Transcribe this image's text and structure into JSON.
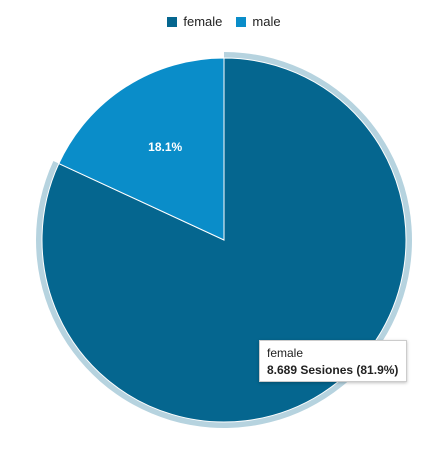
{
  "chart_data": {
    "type": "pie",
    "categories": [
      "female",
      "male"
    ],
    "values": [
      81.9,
      18.1
    ],
    "colors": [
      "#05668f",
      "#0a8dc9"
    ],
    "slice_labels": [
      "",
      "18.1%"
    ],
    "highlighted_category": "female",
    "highlight_ring_color": "#b6d3df",
    "legend": {
      "position": "top-center",
      "entries": [
        "female",
        "male"
      ]
    },
    "tooltip": {
      "title": "female",
      "value": "8.689 Sesiones (81.9%)"
    }
  }
}
